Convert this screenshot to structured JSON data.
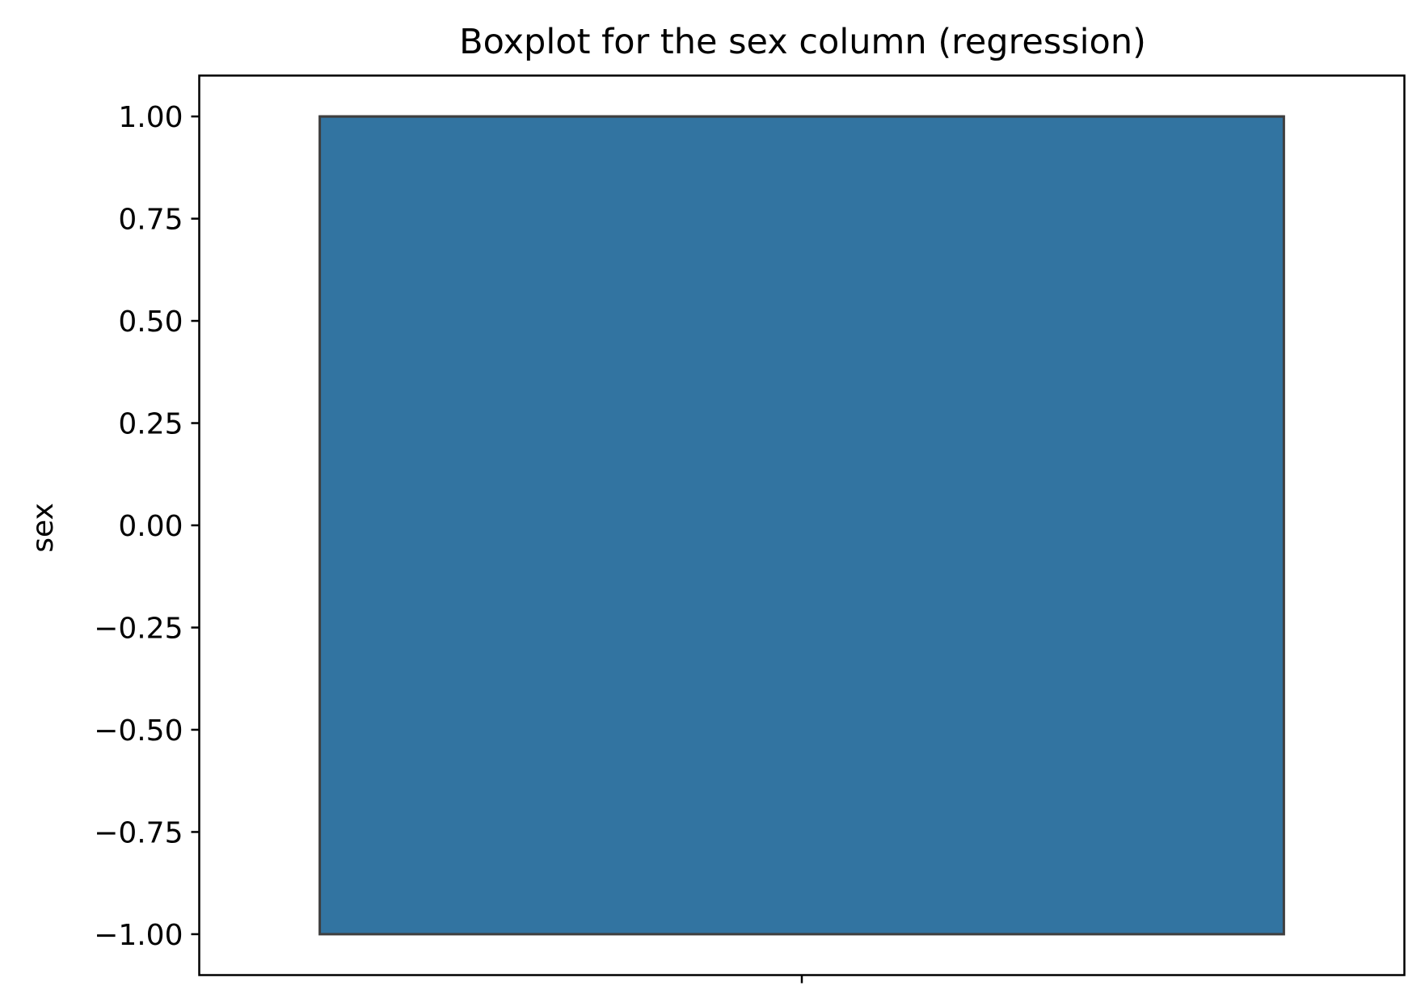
{
  "chart_data": {
    "type": "boxplot",
    "title": "Boxplot for the sex column (regression)",
    "xlabel": "",
    "ylabel": "sex",
    "ylim": [
      -1.1,
      1.1
    ],
    "yticks": [
      1.0,
      0.75,
      0.5,
      0.25,
      0.0,
      -0.25,
      -0.5,
      -0.75,
      -1.0
    ],
    "ytick_labels": [
      "1.00",
      "0.75",
      "0.50",
      "0.25",
      "0.00",
      "−0.25",
      "−0.50",
      "−0.75",
      "−1.00"
    ],
    "grid": false,
    "box": {
      "q1": -1.0,
      "median": 1.0,
      "q3": 1.0,
      "whisker_low": -1.0,
      "whisker_high": 1.0,
      "fill_color": "#3274a1",
      "edge_color": "#3f3f3f"
    }
  }
}
